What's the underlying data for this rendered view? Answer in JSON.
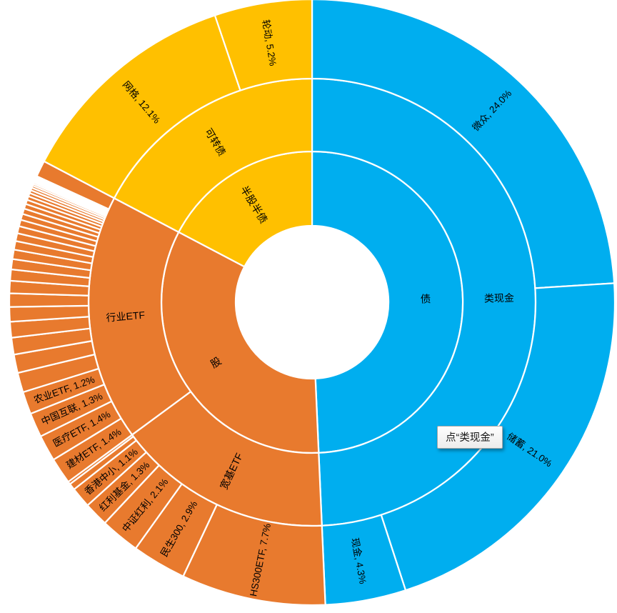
{
  "page": {
    "background": "#ffffff"
  },
  "tooltip": {
    "text": "点“类现金”"
  },
  "chart_data": {
    "type": "sunburst",
    "unit": "%",
    "rings": 3,
    "start_angle_deg": 0,
    "direction": "clockwise",
    "legend": "none",
    "label_color": "#000000",
    "ring_stroke_color": "#ffffff",
    "colors": {
      "债": "#00AEEF",
      "股": "#E87A2E",
      "半股半债": "#FFC000"
    },
    "root": [
      {
        "name": "债",
        "label": "债",
        "children": [
          {
            "name": "类现金",
            "label": "类现金",
            "children": [
              {
                "name": "微众",
                "label": "微众, 24.0%",
                "value": 24.0
              },
              {
                "name": "储蓄",
                "label": "储蓄, 21.0%",
                "value": 21.0
              },
              {
                "name": "现金",
                "label": "现金, 4.3%",
                "value": 4.3
              }
            ]
          }
        ]
      },
      {
        "name": "股",
        "label": "股",
        "children": [
          {
            "name": "宽基ETF",
            "label": "宽基ETF",
            "children": [
              {
                "name": "HS300ETF",
                "label": "HS300ETF, 7.7%",
                "value": 7.7
              },
              {
                "name": "民生300",
                "label": "民生300, 2.9%",
                "value": 2.9
              },
              {
                "name": "中证红利",
                "label": "中证红利, 2.1%",
                "value": 2.1
              },
              {
                "name": "红利基金",
                "label": "红利基金, 1.3%",
                "value": 1.3
              },
              {
                "name": "香港中小",
                "label": "香港中小, 1.1%",
                "value": 1.1
              },
              {
                "name": "unlabeled-broad-etf",
                "values": [
                  0.35,
                  0.15
                ]
              }
            ]
          },
          {
            "name": "行业ETF",
            "label": "行业ETF",
            "children": [
              {
                "name": "建材ETF",
                "label": "建材ETF, 1.4%",
                "value": 1.4
              },
              {
                "name": "医疗ETF",
                "label": "医疗ETF, 1.4%",
                "value": 1.4
              },
              {
                "name": "中国互联",
                "label": "中国互联, 1.3%",
                "value": 1.3
              },
              {
                "name": "农业ETF",
                "label": "农业ETF, 1.2%",
                "value": 1.2
              },
              {
                "name": "unlabeled-small-holdings",
                "values": [
                  1.05,
                  0.98,
                  0.9,
                  0.84,
                  0.78,
                  0.72,
                  0.66,
                  0.6,
                  0.55,
                  0.5,
                  0.46,
                  0.42,
                  0.38,
                  0.35,
                  0.32,
                  0.29,
                  0.26,
                  0.23,
                  0.2,
                  0.18,
                  0.16,
                  0.14,
                  0.12,
                  0.1,
                  0.09,
                  0.08,
                  0.07,
                  0.06,
                  0.05,
                  0.04,
                  0.03,
                  0.02
                ]
              },
              {
                "name": "unlabeled-other-industry",
                "value": 0.87
              }
            ]
          }
        ]
      },
      {
        "name": "半股半债",
        "label": "半股半债",
        "children": [
          {
            "name": "可转债",
            "label": "可转债",
            "children": [
              {
                "name": "网格",
                "label": "网格, 12.1%",
                "value": 12.1
              },
              {
                "name": "轮动",
                "label": "轮动, 5.2%",
                "value": 5.2
              }
            ]
          }
        ]
      }
    ]
  }
}
